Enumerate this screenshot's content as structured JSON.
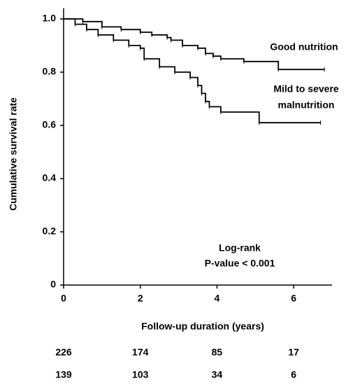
{
  "chart_data": {
    "type": "step",
    "x_label": "Follow-up duration (years)",
    "y_label": "Cumulative survival rate",
    "xlim": [
      0,
      7
    ],
    "ylim": [
      0,
      1.04
    ],
    "xticks": [
      0,
      2,
      4,
      6
    ],
    "yticks": [
      0,
      0.2,
      0.4,
      0.6,
      0.8,
      {
        "value": 1,
        "label": "1.0"
      }
    ],
    "color": "#000000",
    "series": [
      {
        "label_lines": [
          "Good nutrition"
        ],
        "x": [
          0,
          0.5,
          1,
          1.5,
          2,
          2.3,
          2.7,
          2.8,
          3.1,
          3.5,
          3.7,
          3.9,
          4.1,
          4.7,
          5.6,
          6.8
        ],
        "values": [
          1,
          0.99,
          0.97,
          0.96,
          0.95,
          0.94,
          0.93,
          0.92,
          0.9,
          0.89,
          0.87,
          0.86,
          0.85,
          0.84,
          0.81,
          0.81
        ]
      },
      {
        "label_lines": [
          "Mild to severe",
          "malnutrition"
        ],
        "x": [
          0,
          0.3,
          0.6,
          0.9,
          1.3,
          1.7,
          2.0,
          2.1,
          2.5,
          2.9,
          3.3,
          3.5,
          3.6,
          3.7,
          3.8,
          4.1,
          5.1,
          6.7
        ],
        "values": [
          1,
          0.98,
          0.96,
          0.94,
          0.92,
          0.9,
          0.89,
          0.85,
          0.82,
          0.8,
          0.78,
          0.75,
          0.72,
          0.69,
          0.67,
          0.65,
          0.61,
          0.61
        ]
      }
    ],
    "annotation_lines": [
      "Log-rank",
      "P-value < 0.001"
    ],
    "at_risk": [
      [
        226,
        174,
        85,
        17
      ],
      [
        139,
        103,
        34,
        6
      ]
    ]
  }
}
